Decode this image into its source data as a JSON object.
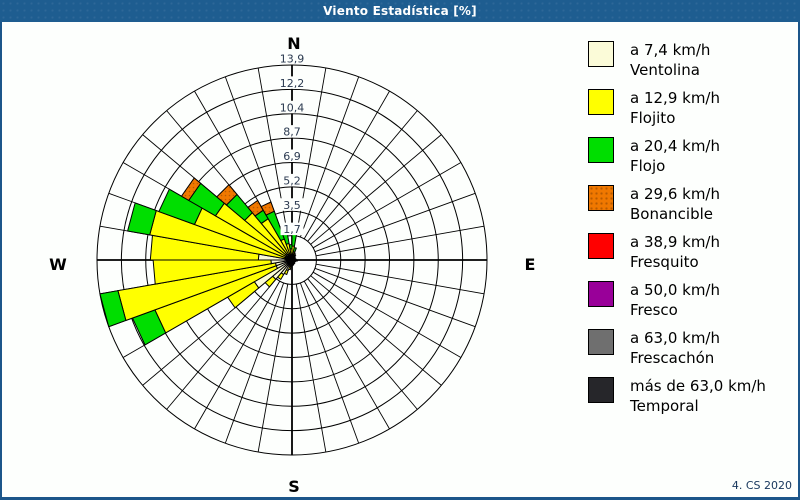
{
  "window": {
    "title": "Viento Estadística [%]",
    "footer": "4. CS 2020"
  },
  "colors": {
    "titlebar_bg": "#1e5d90",
    "window_border": "#1c568a",
    "chart_bg": "#fdfffd",
    "grid": "#000000",
    "ring_label_text": "#2b3a50",
    "footer_text": "#16365c"
  },
  "legend": {
    "items": [
      {
        "speed_label": "a 7,4 km/h",
        "name": "Ventolina",
        "color": "#fbfbd8",
        "dotted": false,
        "dot_color": ""
      },
      {
        "speed_label": "a 12,9 km/h",
        "name": "Flojito",
        "color": "#ffff00",
        "dotted": false,
        "dot_color": ""
      },
      {
        "speed_label": "a 20,4 km/h",
        "name": "Flojo",
        "color": "#00de00",
        "dotted": false,
        "dot_color": ""
      },
      {
        "speed_label": "a 29,6 km/h",
        "name": "Bonancible",
        "color": "#f07800",
        "dotted": true,
        "dot_color": "#b85a00"
      },
      {
        "speed_label": "a 38,9 km/h",
        "name": "Fresquito",
        "color": "#ff0000",
        "dotted": false,
        "dot_color": ""
      },
      {
        "speed_label": "a 50,0 km/h",
        "name": "Fresco",
        "color": "#990099",
        "dotted": false,
        "dot_color": ""
      },
      {
        "speed_label": "a 63,0 km/h",
        "name": "Frescachón",
        "color": "#6f6f6f",
        "dotted": false,
        "dot_color": ""
      },
      {
        "speed_label": "más de 63,0 km/h",
        "name": "Temporal",
        "color": "#26262a",
        "dotted": false,
        "dot_color": ""
      }
    ]
  },
  "chart_data": {
    "type": "wind-rose",
    "title": "Viento Estadística [%]",
    "units": "%",
    "sector_width_deg": 10,
    "axis_max": 13.9,
    "rings": [
      1.7,
      3.5,
      5.2,
      6.9,
      8.7,
      10.4,
      12.2,
      13.9
    ],
    "ring_labels": [
      "1,7",
      "3,5",
      "5,2",
      "6,9",
      "8,7",
      "10,4",
      "12,2",
      "13,9"
    ],
    "compass": {
      "n": "N",
      "e": "E",
      "s": "S",
      "w": "W"
    },
    "categories": [
      "Ventolina",
      "Flojito",
      "Flojo",
      "Bonancible",
      "Fresquito",
      "Fresco",
      "Frescachón",
      "Temporal"
    ],
    "sectors": [
      {
        "start_deg": 0,
        "values": [
          0.4,
          0.6,
          0.9,
          0,
          0,
          0,
          0,
          0
        ]
      },
      {
        "start_deg": 10,
        "values": [
          0.3,
          0.3,
          0.3,
          0,
          0,
          0,
          0,
          0
        ]
      },
      {
        "start_deg": 20,
        "values": [
          0.2,
          0.3,
          0,
          0,
          0,
          0,
          0,
          0
        ]
      },
      {
        "start_deg": 30,
        "values": [
          0.2,
          0.2,
          0,
          0,
          0,
          0,
          0,
          0
        ]
      },
      {
        "start_deg": 40,
        "values": [
          0.2,
          0.1,
          0,
          0,
          0,
          0,
          0,
          0
        ]
      },
      {
        "start_deg": 50,
        "values": [
          0.15,
          0.1,
          0,
          0,
          0,
          0,
          0,
          0
        ]
      },
      {
        "start_deg": 60,
        "values": [
          0.15,
          0.1,
          0,
          0,
          0,
          0,
          0,
          0
        ]
      },
      {
        "start_deg": 70,
        "values": [
          0.15,
          0.1,
          0,
          0,
          0,
          0,
          0,
          0
        ]
      },
      {
        "start_deg": 80,
        "values": [
          0.2,
          0.1,
          0,
          0,
          0,
          0,
          0,
          0
        ]
      },
      {
        "start_deg": 90,
        "values": [
          0.25,
          0.15,
          0,
          0,
          0,
          0,
          0,
          0
        ]
      },
      {
        "start_deg": 100,
        "values": [
          0.2,
          0.1,
          0,
          0,
          0,
          0,
          0,
          0
        ]
      },
      {
        "start_deg": 110,
        "values": [
          0.15,
          0.1,
          0,
          0,
          0,
          0,
          0,
          0
        ]
      },
      {
        "start_deg": 120,
        "values": [
          0.15,
          0.1,
          0,
          0,
          0,
          0,
          0,
          0
        ]
      },
      {
        "start_deg": 130,
        "values": [
          0.15,
          0.1,
          0,
          0,
          0,
          0,
          0,
          0
        ]
      },
      {
        "start_deg": 140,
        "values": [
          0.2,
          0.1,
          0,
          0,
          0,
          0,
          0,
          0
        ]
      },
      {
        "start_deg": 150,
        "values": [
          0.2,
          0.1,
          0,
          0,
          0,
          0,
          0,
          0
        ]
      },
      {
        "start_deg": 160,
        "values": [
          0.25,
          0.1,
          0,
          0,
          0,
          0,
          0,
          0
        ]
      },
      {
        "start_deg": 170,
        "values": [
          0.3,
          0.1,
          0,
          0,
          0,
          0,
          0,
          0
        ]
      },
      {
        "start_deg": 180,
        "values": [
          0.35,
          0.15,
          0,
          0,
          0,
          0,
          0,
          0
        ]
      },
      {
        "start_deg": 190,
        "values": [
          0.5,
          0.2,
          0,
          0,
          0,
          0,
          0,
          0
        ]
      },
      {
        "start_deg": 200,
        "values": [
          0.8,
          0.3,
          0,
          0,
          0,
          0,
          0,
          0
        ]
      },
      {
        "start_deg": 210,
        "values": [
          1.2,
          0.4,
          0,
          0,
          0,
          0,
          0,
          0
        ]
      },
      {
        "start_deg": 220,
        "values": [
          1.8,
          0.7,
          0,
          0,
          0,
          0,
          0,
          0
        ]
      },
      {
        "start_deg": 230,
        "values": [
          3.1,
          2.2,
          0,
          0,
          0,
          0,
          0,
          0
        ]
      },
      {
        "start_deg": 240,
        "values": [
          1.2,
          9.2,
          1.7,
          0,
          0,
          0,
          0,
          0
        ]
      },
      {
        "start_deg": 250,
        "values": [
          1.2,
          11.4,
          1.3,
          0,
          0,
          0,
          0,
          0
        ]
      },
      {
        "start_deg": 260,
        "values": [
          1.5,
          8.4,
          0,
          0,
          0,
          0,
          0,
          0
        ]
      },
      {
        "start_deg": 270,
        "values": [
          2.4,
          7.7,
          0,
          0,
          0,
          0,
          0,
          0
        ]
      },
      {
        "start_deg": 280,
        "values": [
          0.5,
          9.8,
          1.6,
          0,
          0,
          0,
          0,
          0
        ]
      },
      {
        "start_deg": 290,
        "values": [
          0.5,
          6.9,
          2.7,
          0,
          0,
          0,
          0,
          0
        ]
      },
      {
        "start_deg": 300,
        "values": [
          0.5,
          5.8,
          2.2,
          0.6,
          0,
          0,
          0,
          0
        ]
      },
      {
        "start_deg": 310,
        "values": [
          0.6,
          3.8,
          1.7,
          0.9,
          0,
          0,
          0,
          0
        ]
      },
      {
        "start_deg": 320,
        "values": [
          0.5,
          2.9,
          0.7,
          0.8,
          0,
          0,
          0,
          0
        ]
      },
      {
        "start_deg": 330,
        "values": [
          0.3,
          1.3,
          2.1,
          0.7,
          0,
          0,
          0,
          0
        ]
      },
      {
        "start_deg": 340,
        "values": [
          0.3,
          0.9,
          1.2,
          0,
          0,
          0,
          0,
          0
        ]
      },
      {
        "start_deg": 350,
        "values": [
          0.3,
          0.5,
          0.3,
          0,
          0,
          0,
          0,
          0
        ]
      }
    ]
  }
}
